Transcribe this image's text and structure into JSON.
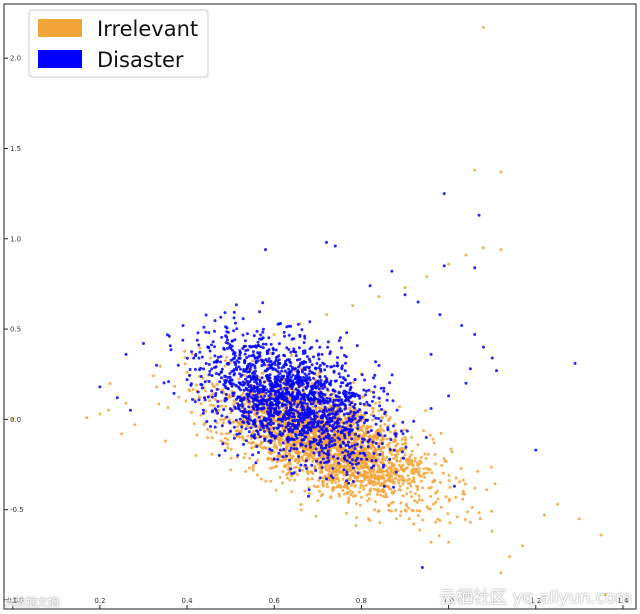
{
  "chart_data": {
    "type": "scatter",
    "title": "",
    "xlabel": "",
    "ylabel": "",
    "xlim": [
      -0.02,
      1.43
    ],
    "ylim": [
      -1.05,
      2.3
    ],
    "x_ticks": [
      0.0,
      0.2,
      0.4,
      0.6,
      0.8,
      1.0,
      1.2,
      1.4
    ],
    "x_tick_labels": [
      "0.0",
      "0.2",
      "0.4",
      "0.6",
      "0.8",
      "1.0",
      "1.2",
      "1.4"
    ],
    "y_ticks": [
      -1.0,
      -0.5,
      0.0,
      0.5,
      1.0,
      1.5,
      2.0
    ],
    "y_tick_labels": [
      "-1.0",
      "-0.5",
      "0.0",
      "0.5",
      "1.0",
      "1.5",
      "2.0"
    ],
    "grid": false,
    "legend": {
      "position": "top-left"
    },
    "series": [
      {
        "name": "Irrelevant",
        "color": "#f4a53a",
        "cluster": {
          "center": [
            0.72,
            -0.12
          ],
          "spread": [
            0.12,
            0.17
          ],
          "correlation": -0.62,
          "count": 2600
        },
        "points": [
          [
            0.0,
            0.0
          ],
          [
            1.08,
            2.17
          ],
          [
            1.12,
            1.37
          ],
          [
            1.06,
            1.38
          ],
          [
            1.36,
            -0.97
          ],
          [
            1.35,
            -0.64
          ],
          [
            1.3,
            -0.55
          ],
          [
            1.12,
            -0.85
          ],
          [
            1.14,
            -0.76
          ],
          [
            0.17,
            0.01
          ],
          [
            0.2,
            0.03
          ],
          [
            0.96,
            -0.68
          ],
          [
            1.0,
            -0.68
          ],
          [
            1.25,
            -0.47
          ],
          [
            1.22,
            -0.53
          ],
          [
            1.17,
            -0.7
          ],
          [
            1.1,
            -0.62
          ],
          [
            1.05,
            -0.57
          ],
          [
            1.02,
            -0.54
          ],
          [
            0.98,
            -0.56
          ],
          [
            0.92,
            -0.58
          ],
          [
            0.88,
            -0.55
          ],
          [
            0.83,
            -0.5
          ],
          [
            0.77,
            -0.46
          ],
          [
            0.7,
            -0.45
          ],
          [
            0.64,
            -0.4
          ],
          [
            0.57,
            -0.33
          ],
          [
            0.5,
            -0.28
          ],
          [
            0.42,
            -0.2
          ],
          [
            0.35,
            -0.12
          ],
          [
            0.28,
            -0.03
          ],
          [
            0.22,
            0.05
          ],
          [
            0.26,
            0.09
          ],
          [
            0.33,
            0.18
          ],
          [
            0.4,
            0.26
          ],
          [
            0.47,
            0.33
          ],
          [
            0.53,
            0.4
          ],
          [
            0.6,
            0.47
          ],
          [
            0.66,
            0.53
          ],
          [
            0.72,
            0.58
          ],
          [
            0.78,
            0.63
          ],
          [
            0.84,
            0.68
          ],
          [
            0.9,
            0.73
          ],
          [
            0.95,
            0.79
          ],
          [
            1.0,
            0.86
          ],
          [
            1.04,
            0.91
          ],
          [
            1.08,
            0.95
          ],
          [
            1.12,
            0.94
          ]
        ]
      },
      {
        "name": "Disaster",
        "color": "#0000ff",
        "cluster": {
          "center": [
            0.64,
            0.12
          ],
          "spread": [
            0.1,
            0.17
          ],
          "correlation": -0.45,
          "count": 1800
        },
        "points": [
          [
            0.99,
            1.25
          ],
          [
            1.07,
            1.13
          ],
          [
            1.29,
            0.31
          ],
          [
            1.2,
            -0.17
          ],
          [
            0.94,
            -0.82
          ],
          [
            0.58,
            0.94
          ],
          [
            0.72,
            0.98
          ],
          [
            0.74,
            0.96
          ],
          [
            0.99,
            0.85
          ],
          [
            1.06,
            0.84
          ],
          [
            0.96,
            0.36
          ],
          [
            1.05,
            0.28
          ],
          [
            0.3,
            0.42
          ],
          [
            0.26,
            0.36
          ],
          [
            0.2,
            0.18
          ],
          [
            0.24,
            0.12
          ],
          [
            0.27,
            0.05
          ],
          [
            0.33,
            0.3
          ],
          [
            0.87,
            0.82
          ],
          [
            0.82,
            0.74
          ],
          [
            0.9,
            0.69
          ],
          [
            0.93,
            0.65
          ],
          [
            0.98,
            0.58
          ],
          [
            1.03,
            0.52
          ],
          [
            1.06,
            0.47
          ],
          [
            1.08,
            0.4
          ],
          [
            1.1,
            0.34
          ],
          [
            1.11,
            0.27
          ],
          [
            1.04,
            0.2
          ],
          [
            1.0,
            0.13
          ],
          [
            0.96,
            0.06
          ],
          [
            0.92,
            -0.01
          ],
          [
            0.88,
            -0.08
          ],
          [
            0.84,
            -0.15
          ],
          [
            0.8,
            -0.22
          ],
          [
            0.76,
            -0.28
          ],
          [
            0.72,
            -0.33
          ],
          [
            0.68,
            -0.39
          ],
          [
            0.64,
            -0.3
          ],
          [
            0.6,
            -0.22
          ],
          [
            0.56,
            -0.15
          ],
          [
            0.52,
            -0.08
          ],
          [
            0.48,
            0.02
          ],
          [
            0.44,
            0.12
          ],
          [
            0.4,
            0.22
          ],
          [
            0.38,
            0.3
          ],
          [
            0.42,
            0.36
          ],
          [
            0.46,
            0.43
          ]
        ]
      }
    ]
  },
  "watermark": {
    "right": "云栖社区 yq.aliyun.com",
    "left": "大数据文摘"
  }
}
